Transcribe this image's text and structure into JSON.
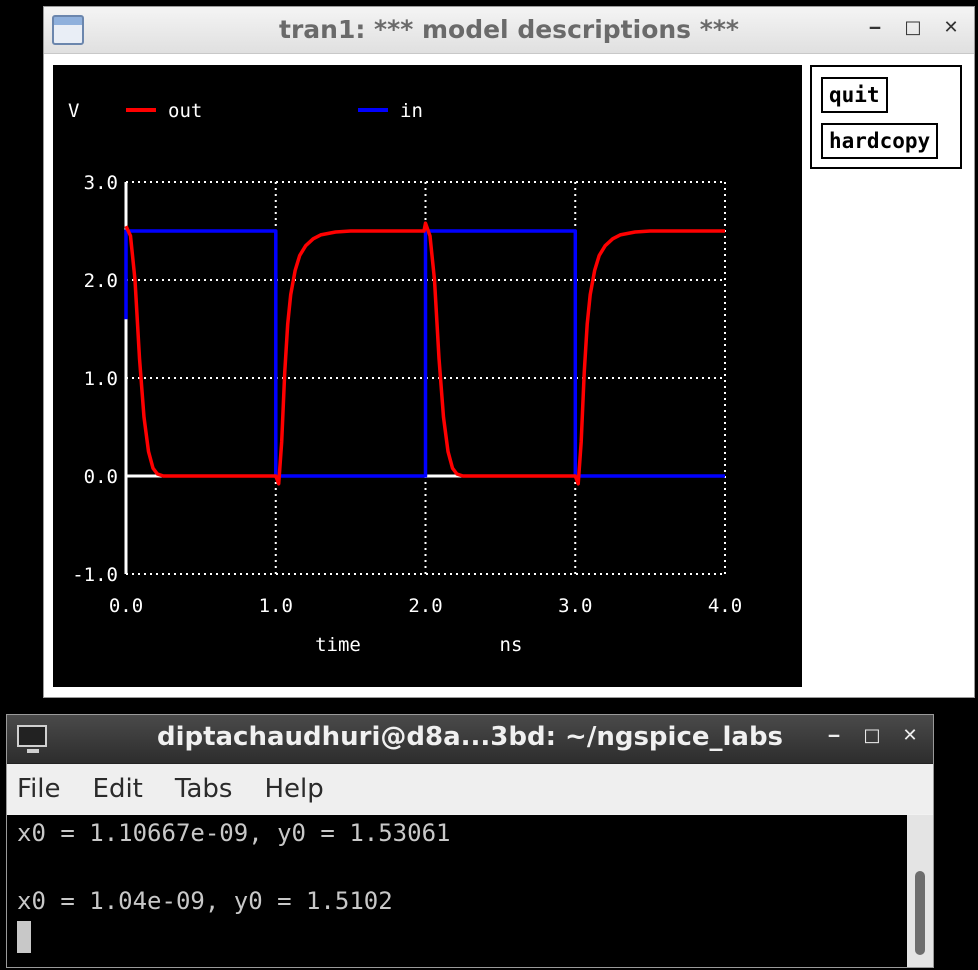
{
  "plot_window": {
    "title": "tran1: *** model descriptions ***",
    "buttons": {
      "quit": "quit",
      "hardcopy": "hardcopy"
    },
    "window_controls": [
      "minimize-icon",
      "maximize-icon",
      "close-icon"
    ]
  },
  "chart_data": {
    "type": "line",
    "background": "#000000",
    "xlabel": "time",
    "xunit": "ns",
    "ylabel": "V",
    "xlim": [
      0,
      4
    ],
    "ylim": [
      -1,
      3
    ],
    "xticks": [
      "0.0",
      "1.0",
      "2.0",
      "3.0",
      "4.0"
    ],
    "yticks": [
      "3.0",
      "2.0",
      "1.0",
      "0.0",
      "-1.0"
    ],
    "grid": true,
    "legend_placement": "top",
    "series": [
      {
        "name": "out",
        "color": "#ff0000",
        "x": [
          0.0,
          0.03,
          0.06,
          0.09,
          0.12,
          0.15,
          0.18,
          0.21,
          0.25,
          0.3,
          0.5,
          0.9,
          1.0,
          1.02,
          1.04,
          1.06,
          1.08,
          1.1,
          1.13,
          1.16,
          1.2,
          1.25,
          1.3,
          1.4,
          1.5,
          1.8,
          1.99,
          2.0,
          2.03,
          2.06,
          2.09,
          2.12,
          2.15,
          2.18,
          2.21,
          2.25,
          2.3,
          2.5,
          2.9,
          3.0,
          3.02,
          3.04,
          3.06,
          3.08,
          3.1,
          3.13,
          3.16,
          3.2,
          3.25,
          3.3,
          3.4,
          3.5,
          4.0
        ],
        "y": [
          2.55,
          2.45,
          2.0,
          1.2,
          0.6,
          0.25,
          0.08,
          0.02,
          0.0,
          0.0,
          0.0,
          0.0,
          0.0,
          -0.08,
          0.35,
          1.05,
          1.55,
          1.85,
          2.1,
          2.25,
          2.35,
          2.42,
          2.46,
          2.49,
          2.5,
          2.5,
          2.5,
          2.58,
          2.45,
          2.0,
          1.2,
          0.6,
          0.25,
          0.08,
          0.02,
          0.0,
          0.0,
          0.0,
          0.0,
          0.0,
          -0.08,
          0.35,
          1.05,
          1.55,
          1.85,
          2.1,
          2.25,
          2.35,
          2.42,
          2.46,
          2.49,
          2.5,
          2.5
        ]
      },
      {
        "name": "in",
        "color": "#0000ff",
        "x": [
          0.0,
          0.0,
          1.0,
          1.0,
          2.0,
          2.0,
          3.0,
          3.0,
          4.0
        ],
        "y": [
          1.6,
          2.5,
          2.5,
          0.0,
          0.0,
          2.5,
          2.5,
          0.0,
          0.0
        ]
      }
    ]
  },
  "terminal_window": {
    "title": "diptachaudhuri@d8a...3bd: ~/ngspice_labs",
    "menu": [
      "File",
      "Edit",
      "Tabs",
      "Help"
    ],
    "lines": [
      "x0 = 1.10667e-09, y0 = 1.53061",
      "",
      "x0 = 1.04e-09, y0 = 1.5102"
    ]
  }
}
